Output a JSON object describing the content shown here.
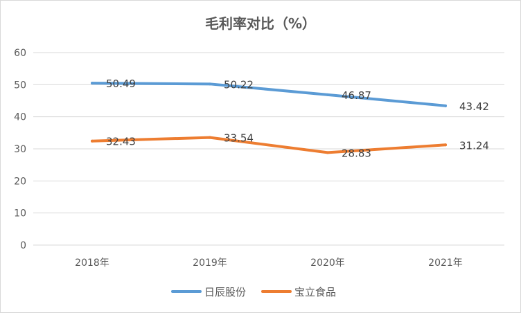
{
  "chart_data": {
    "type": "line",
    "title": "毛利率对比（%）",
    "categories": [
      "2018年",
      "2019年",
      "2020年",
      "2021年"
    ],
    "series": [
      {
        "name": "日辰股份",
        "values": [
          50.49,
          50.22,
          46.87,
          43.42
        ],
        "color": "#5B9BD5"
      },
      {
        "name": "宝立食品",
        "values": [
          32.43,
          33.54,
          28.83,
          31.24
        ],
        "color": "#ED7D31"
      }
    ],
    "ylim": [
      0,
      60
    ],
    "yticks": [
      0,
      10,
      20,
      30,
      40,
      50,
      60
    ],
    "grid": true,
    "legend": "bottom",
    "data_labels": true
  }
}
